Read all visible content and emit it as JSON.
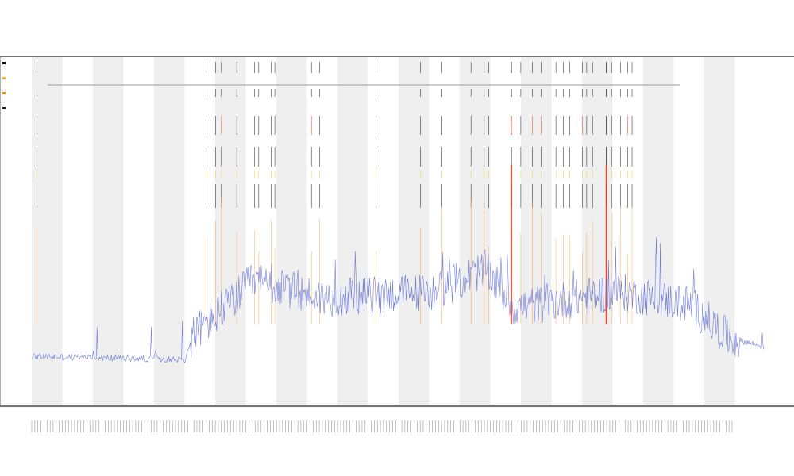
{
  "chart_data": {
    "type": "line",
    "title_lines": [
      "",
      "",
      ""
    ],
    "xlabel": "",
    "ylabel": "",
    "legend_placement": "top-left",
    "legend_entries": [
      "",
      "",
      "",
      ""
    ],
    "legend_colors": [
      "#000000",
      "#e8c020",
      "#ff8a00",
      "#1a1a1a"
    ],
    "annotation_labels": [
      "",
      ""
    ],
    "grid": false,
    "alternating_bands": true,
    "band_color": "#efefef",
    "n_bands": 23,
    "colors": {
      "activity_line": "#4f5fd0",
      "event_red": "#e23b1e",
      "event_orange": "#ff8c1a",
      "event_yellow": "#e8d21e",
      "event_black": "#1a1a1a",
      "axis": "#222222"
    },
    "n_points": 920,
    "baseline_level": [
      [
        0,
        0.1
      ],
      [
        0.21,
        0.09
      ],
      [
        0.22,
        0.17
      ],
      [
        0.26,
        0.24
      ],
      [
        0.3,
        0.33
      ],
      [
        0.4,
        0.28
      ],
      [
        0.55,
        0.3
      ],
      [
        0.62,
        0.37
      ],
      [
        0.66,
        0.25
      ],
      [
        0.8,
        0.3
      ],
      [
        0.9,
        0.26
      ],
      [
        0.95,
        0.16
      ],
      [
        1.0,
        0.13
      ]
    ],
    "strong_event_positions": [
      0.387,
      0.655,
      0.785
    ],
    "event_positions": [
      0.007,
      0.238,
      0.251,
      0.259,
      0.28,
      0.304,
      0.31,
      0.327,
      0.332,
      0.382,
      0.393,
      0.47,
      0.531,
      0.56,
      0.6,
      0.618,
      0.624,
      0.655,
      0.668,
      0.684,
      0.696,
      0.716,
      0.726,
      0.735,
      0.752,
      0.758,
      0.766,
      0.785,
      0.792,
      0.804,
      0.814,
      0.82
    ]
  }
}
